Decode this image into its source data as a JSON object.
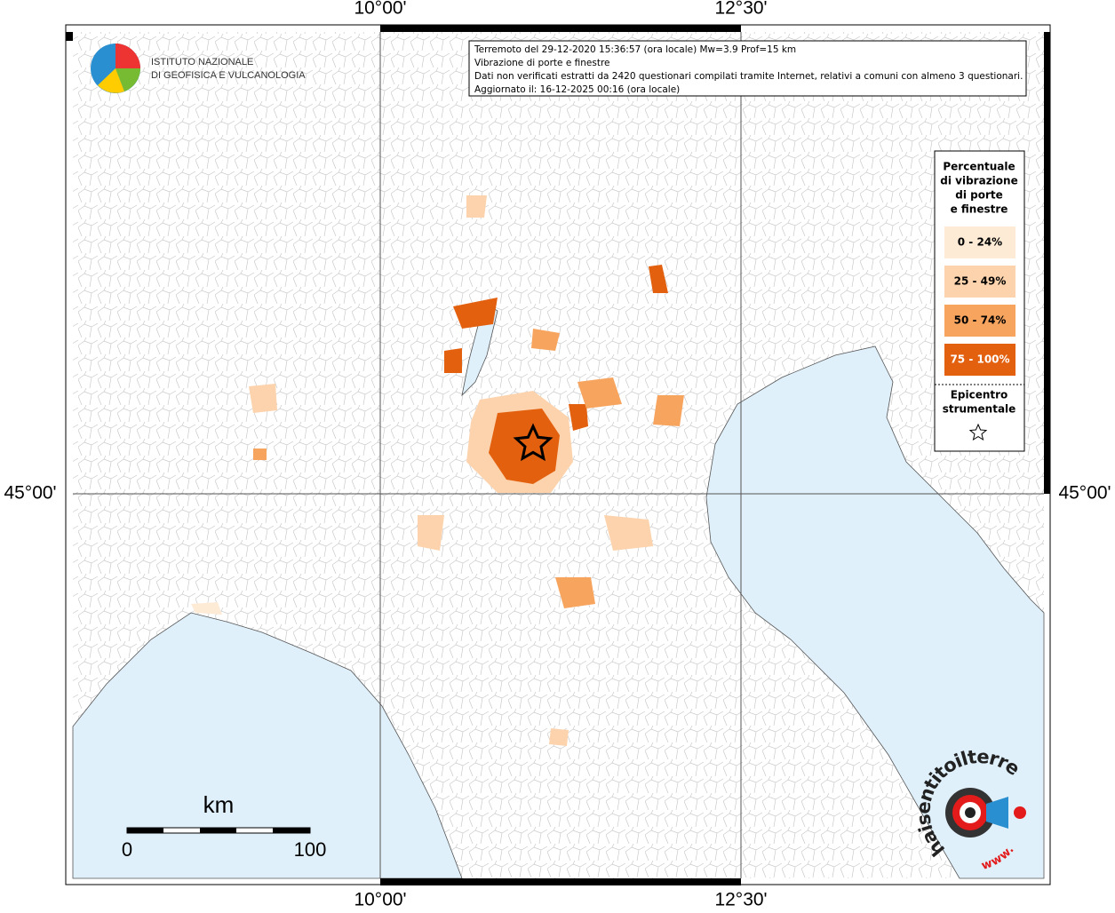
{
  "coordinates": {
    "top": [
      "10°00'",
      "12°30'"
    ],
    "bottom": [
      "10°00'",
      "12°30'"
    ],
    "left": "45°00'",
    "right": "45°00'"
  },
  "logo": {
    "line1": "ISTITUTO NAZIONALE",
    "line2": "DI GEOFISICA E VULCANOLOGIA"
  },
  "info": [
    "Terremoto del 29-12-2020 15:36:57 (ora locale) Mw=3.9 Prof=15 km",
    "Vibrazione di porte e finestre",
    "Dati non verificati estratti da 2420 questionari compilati tramite Internet, relativi a comuni con almeno 3 questionari.",
    "Aggiornato il: 16-12-2025 00:16 (ora locale)"
  ],
  "legend": {
    "title": [
      "Percentuale",
      "di vibrazione",
      "di porte",
      "e finestre"
    ],
    "items": [
      {
        "label": "0 - 24%",
        "color": "#fdebd6"
      },
      {
        "label": "25 - 49%",
        "color": "#fcd3ad"
      },
      {
        "label": "50 - 74%",
        "color": "#f7a45f"
      },
      {
        "label": "75 - 100%",
        "color": "#e3600f"
      }
    ],
    "epicenter": [
      "Epicentro",
      "strumentale"
    ]
  },
  "scale": {
    "unit": "km",
    "start": "0",
    "end": "100"
  },
  "site": {
    "name": "haisentitoilterremoto.it",
    "prefix": "www."
  }
}
